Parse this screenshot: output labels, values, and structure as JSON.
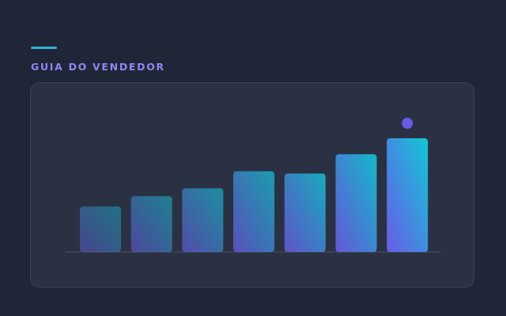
{
  "section": {
    "label": "GUIA DO VENDEDOR"
  },
  "colors": {
    "background": "#1f2637",
    "card": "#2a3142",
    "accent": "#2fb2d6",
    "label": "#8f86f0",
    "bar_teal": "#12c6d6",
    "bar_violet": "#6a5be8",
    "marker": "#6a5be8"
  },
  "chart_data": {
    "type": "bar",
    "categories": [
      "",
      "",
      "",
      "",
      "",
      "",
      ""
    ],
    "values": [
      40,
      49,
      56,
      71,
      69,
      86,
      100
    ],
    "highlight_index": 6,
    "ylim": [
      0,
      100
    ],
    "title": "",
    "xlabel": "",
    "ylabel": "",
    "grid": false,
    "marker": "dot above last bar"
  }
}
